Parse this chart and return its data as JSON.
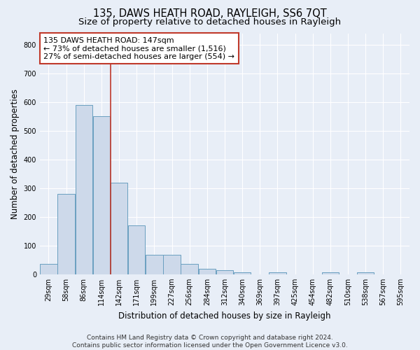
{
  "title": "135, DAWS HEATH ROAD, RAYLEIGH, SS6 7QT",
  "subtitle": "Size of property relative to detached houses in Rayleigh",
  "xlabel": "Distribution of detached houses by size in Rayleigh",
  "ylabel": "Number of detached properties",
  "footer_line1": "Contains HM Land Registry data © Crown copyright and database right 2024.",
  "footer_line2": "Contains public sector information licensed under the Open Government Licence v3.0.",
  "bin_labels": [
    "29sqm",
    "58sqm",
    "86sqm",
    "114sqm",
    "142sqm",
    "171sqm",
    "199sqm",
    "227sqm",
    "256sqm",
    "284sqm",
    "312sqm",
    "340sqm",
    "369sqm",
    "397sqm",
    "425sqm",
    "454sqm",
    "482sqm",
    "510sqm",
    "538sqm",
    "567sqm",
    "595sqm"
  ],
  "bar_heights": [
    35,
    280,
    590,
    550,
    320,
    170,
    67,
    67,
    35,
    20,
    13,
    8,
    0,
    8,
    0,
    0,
    8,
    0,
    8,
    0,
    0
  ],
  "bar_color": "#cdd9ea",
  "bar_edge_color": "#6a9fc0",
  "highlighted_bar_index": 4,
  "red_line_bar_index": 4,
  "annotation_text_line1": "135 DAWS HEATH ROAD: 147sqm",
  "annotation_text_line2": "← 73% of detached houses are smaller (1,516)",
  "annotation_text_line3": "27% of semi-detached houses are larger (554) →",
  "annotation_box_color": "white",
  "annotation_box_edge_color": "#c0392b",
  "red_line_color": "#c0392b",
  "ylim": [
    0,
    840
  ],
  "yticks": [
    0,
    100,
    200,
    300,
    400,
    500,
    600,
    700,
    800
  ],
  "background_color": "#e8eef7",
  "grid_color": "#ffffff",
  "title_fontsize": 10.5,
  "subtitle_fontsize": 9.5,
  "axis_label_fontsize": 8.5,
  "tick_fontsize": 7,
  "annotation_fontsize": 8,
  "footer_fontsize": 6.5
}
